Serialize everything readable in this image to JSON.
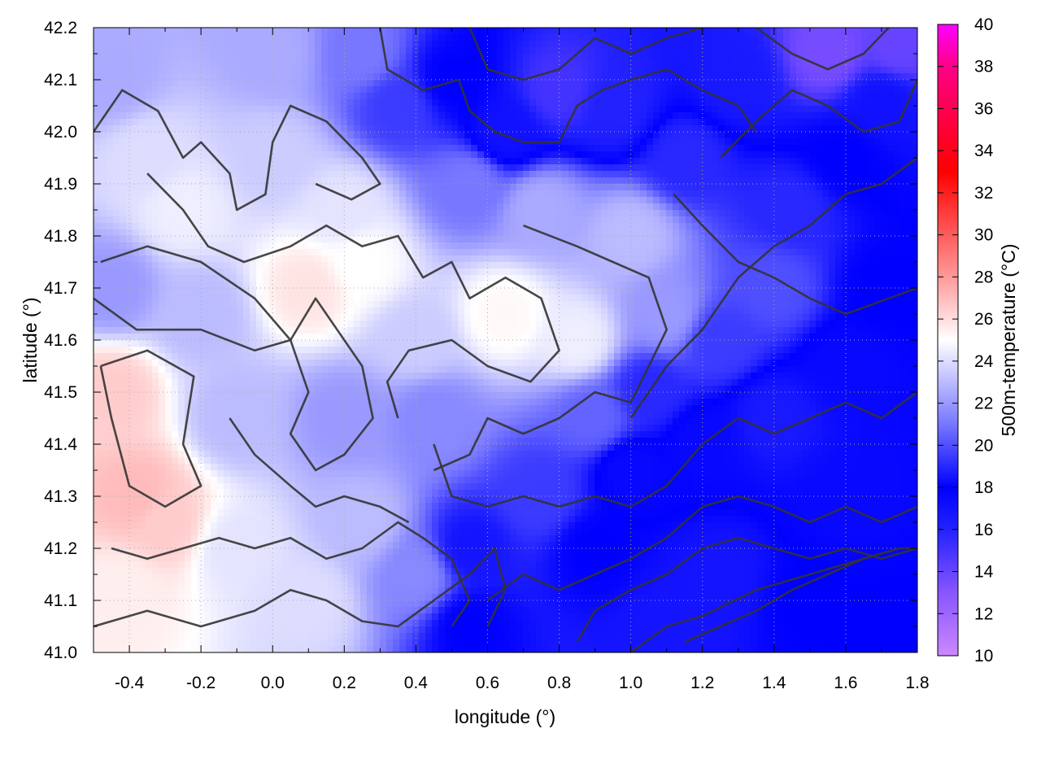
{
  "chart_data": {
    "type": "heatmap",
    "xlabel": "longitude (°)",
    "ylabel": "latitude (°)",
    "colorbar_label": "500m-temperature (°C)",
    "xlim": [
      -0.5,
      1.8
    ],
    "ylim": [
      41.0,
      42.2
    ],
    "color_range": [
      10,
      40
    ],
    "x_ticks": [
      {
        "value": -0.4,
        "label": "-0.4"
      },
      {
        "value": -0.2,
        "label": "-0.2"
      },
      {
        "value": 0.0,
        "label": "0.0"
      },
      {
        "value": 0.2,
        "label": "0.2"
      },
      {
        "value": 0.4,
        "label": "0.4"
      },
      {
        "value": 0.6,
        "label": "0.6"
      },
      {
        "value": 0.8,
        "label": "0.8"
      },
      {
        "value": 1.0,
        "label": "1.0"
      },
      {
        "value": 1.2,
        "label": "1.2"
      },
      {
        "value": 1.4,
        "label": "1.4"
      },
      {
        "value": 1.6,
        "label": "1.6"
      },
      {
        "value": 1.8,
        "label": "1.8"
      }
    ],
    "y_ticks": [
      {
        "value": 41.0,
        "label": "41.0"
      },
      {
        "value": 41.1,
        "label": "41.1"
      },
      {
        "value": 41.2,
        "label": "41.2"
      },
      {
        "value": 41.3,
        "label": "41.3"
      },
      {
        "value": 41.4,
        "label": "41.4"
      },
      {
        "value": 41.5,
        "label": "41.5"
      },
      {
        "value": 41.6,
        "label": "41.6"
      },
      {
        "value": 41.7,
        "label": "41.7"
      },
      {
        "value": 41.8,
        "label": "41.8"
      },
      {
        "value": 41.9,
        "label": "41.9"
      },
      {
        "value": 42.0,
        "label": "42.0"
      },
      {
        "value": 42.1,
        "label": "42.1"
      },
      {
        "value": 42.2,
        "label": "42.2"
      }
    ],
    "colorbar_ticks": [
      {
        "value": 10,
        "label": "10"
      },
      {
        "value": 12,
        "label": "12"
      },
      {
        "value": 14,
        "label": "14"
      },
      {
        "value": 16,
        "label": "16"
      },
      {
        "value": 18,
        "label": "18"
      },
      {
        "value": 20,
        "label": "20"
      },
      {
        "value": 22,
        "label": "22"
      },
      {
        "value": 24,
        "label": "24"
      },
      {
        "value": 26,
        "label": "26"
      },
      {
        "value": 28,
        "label": "28"
      },
      {
        "value": 30,
        "label": "30"
      },
      {
        "value": 32,
        "label": "32"
      },
      {
        "value": 34,
        "label": "34"
      },
      {
        "value": 36,
        "label": "36"
      },
      {
        "value": 38,
        "label": "38"
      },
      {
        "value": 40,
        "label": "40"
      }
    ],
    "colormap": [
      {
        "value": 10,
        "color": "#cc88ff"
      },
      {
        "value": 13,
        "color": "#8855ff"
      },
      {
        "value": 16,
        "color": "#2222ff"
      },
      {
        "value": 18,
        "color": "#0000ff"
      },
      {
        "value": 21,
        "color": "#7777ff"
      },
      {
        "value": 25,
        "color": "#ffffff"
      },
      {
        "value": 28,
        "color": "#ff9999"
      },
      {
        "value": 33,
        "color": "#ff0000"
      },
      {
        "value": 38,
        "color": "#ff0088"
      },
      {
        "value": 40,
        "color": "#ff00ff"
      }
    ],
    "grid": true,
    "field_samples": [
      {
        "lon": -0.45,
        "lat": 41.5,
        "temp": 26.5
      },
      {
        "lon": -0.38,
        "lat": 41.3,
        "temp": 27.0
      },
      {
        "lon": -0.3,
        "lat": 41.25,
        "temp": 26.5
      },
      {
        "lon": -0.42,
        "lat": 41.12,
        "temp": 25.5
      },
      {
        "lon": -0.2,
        "lat": 41.65,
        "temp": 23.0
      },
      {
        "lon": -0.35,
        "lat": 41.95,
        "temp": 24.0
      },
      {
        "lon": -0.25,
        "lat": 41.85,
        "temp": 24.5
      },
      {
        "lon": 0.1,
        "lat": 41.7,
        "temp": 25.8
      },
      {
        "lon": 0.25,
        "lat": 41.75,
        "temp": 25.0
      },
      {
        "lon": 0.65,
        "lat": 41.65,
        "temp": 25.2
      },
      {
        "lon": 0.85,
        "lat": 41.6,
        "temp": 24.5
      },
      {
        "lon": 0.0,
        "lat": 41.95,
        "temp": 23.5
      },
      {
        "lon": 0.2,
        "lat": 41.85,
        "temp": 24.2
      },
      {
        "lon": -0.1,
        "lat": 41.2,
        "temp": 24.2
      },
      {
        "lon": 0.1,
        "lat": 41.1,
        "temp": 24.0
      },
      {
        "lon": 0.25,
        "lat": 41.25,
        "temp": 23.0
      },
      {
        "lon": 0.2,
        "lat": 41.45,
        "temp": 22.0
      },
      {
        "lon": -0.1,
        "lat": 41.45,
        "temp": 23.0
      },
      {
        "lon": 0.45,
        "lat": 41.45,
        "temp": 21.5
      },
      {
        "lon": 0.4,
        "lat": 41.15,
        "temp": 21.5
      },
      {
        "lon": 0.55,
        "lat": 41.2,
        "temp": 18.5
      },
      {
        "lon": 0.55,
        "lat": 41.05,
        "temp": 18.0
      },
      {
        "lon": 0.75,
        "lat": 41.3,
        "temp": 19.5
      },
      {
        "lon": 0.9,
        "lat": 41.2,
        "temp": 18.0
      },
      {
        "lon": 1.0,
        "lat": 41.35,
        "temp": 17.5
      },
      {
        "lon": 1.05,
        "lat": 41.5,
        "temp": 19.0
      },
      {
        "lon": 0.9,
        "lat": 41.45,
        "temp": 20.5
      },
      {
        "lon": 1.2,
        "lat": 41.4,
        "temp": 17.5
      },
      {
        "lon": 1.4,
        "lat": 41.45,
        "temp": 16.5
      },
      {
        "lon": 1.6,
        "lat": 41.55,
        "temp": 17.5
      },
      {
        "lon": 1.7,
        "lat": 41.7,
        "temp": 18.0
      },
      {
        "lon": 1.6,
        "lat": 41.3,
        "temp": 17.5
      },
      {
        "lon": 1.5,
        "lat": 41.1,
        "temp": 18.0
      },
      {
        "lon": 1.25,
        "lat": 41.15,
        "temp": 18.5
      },
      {
        "lon": 1.1,
        "lat": 41.05,
        "temp": 18.5
      },
      {
        "lon": 1.25,
        "lat": 41.6,
        "temp": 19.5
      },
      {
        "lon": 1.4,
        "lat": 41.7,
        "temp": 20.0
      },
      {
        "lon": 1.45,
        "lat": 41.85,
        "temp": 19.0
      },
      {
        "lon": 1.6,
        "lat": 41.95,
        "temp": 18.0
      },
      {
        "lon": 1.7,
        "lat": 42.05,
        "temp": 17.0
      },
      {
        "lon": 1.55,
        "lat": 42.15,
        "temp": 13.5
      },
      {
        "lon": 1.75,
        "lat": 42.17,
        "temp": 14.0
      },
      {
        "lon": 1.3,
        "lat": 42.1,
        "temp": 16.5
      },
      {
        "lon": 1.15,
        "lat": 41.95,
        "temp": 19.0
      },
      {
        "lon": 0.95,
        "lat": 42.05,
        "temp": 16.0
      },
      {
        "lon": 0.8,
        "lat": 42.08,
        "temp": 15.0
      },
      {
        "lon": 0.65,
        "lat": 42.0,
        "temp": 17.0
      },
      {
        "lon": 0.5,
        "lat": 42.1,
        "temp": 18.0
      },
      {
        "lon": 0.35,
        "lat": 42.05,
        "temp": 19.5
      },
      {
        "lon": 0.55,
        "lat": 41.9,
        "temp": 21.0
      },
      {
        "lon": 0.75,
        "lat": 41.85,
        "temp": 22.5
      },
      {
        "lon": 1.0,
        "lat": 41.8,
        "temp": 23.0
      },
      {
        "lon": 1.1,
        "lat": 41.65,
        "temp": 22.0
      },
      {
        "lon": 0.4,
        "lat": 41.6,
        "temp": 23.5
      },
      {
        "lon": 0.0,
        "lat": 42.15,
        "temp": 22.5
      },
      {
        "lon": 0.25,
        "lat": 42.15,
        "temp": 21.0
      },
      {
        "lon": -0.45,
        "lat": 41.7,
        "temp": 22.0
      },
      {
        "lon": -0.45,
        "lat": 42.1,
        "temp": 22.5
      },
      {
        "lon": 1.75,
        "lat": 41.05,
        "temp": 18.0
      }
    ],
    "contours": [
      [
        [
          -0.48,
          41.55
        ],
        [
          -0.35,
          41.58
        ],
        [
          -0.22,
          41.53
        ],
        [
          -0.25,
          41.4
        ],
        [
          -0.2,
          41.32
        ],
        [
          -0.3,
          41.28
        ],
        [
          -0.4,
          41.32
        ],
        [
          -0.45,
          41.45
        ],
        [
          -0.48,
          41.55
        ]
      ],
      [
        [
          -0.5,
          41.68
        ],
        [
          -0.38,
          41.62
        ],
        [
          -0.2,
          41.62
        ],
        [
          -0.05,
          41.58
        ],
        [
          0.05,
          41.6
        ],
        [
          -0.05,
          41.68
        ],
        [
          -0.2,
          41.75
        ],
        [
          -0.35,
          41.78
        ],
        [
          -0.48,
          41.75
        ]
      ],
      [
        [
          -0.5,
          42.0
        ],
        [
          -0.42,
          42.08
        ],
        [
          -0.32,
          42.04
        ],
        [
          -0.25,
          41.95
        ],
        [
          -0.2,
          41.98
        ],
        [
          -0.12,
          41.92
        ],
        [
          -0.1,
          41.85
        ],
        [
          -0.02,
          41.88
        ],
        [
          0.0,
          41.98
        ],
        [
          0.05,
          42.05
        ],
        [
          0.15,
          42.02
        ],
        [
          0.25,
          41.95
        ],
        [
          0.3,
          41.9
        ],
        [
          0.22,
          41.87
        ],
        [
          0.12,
          41.9
        ]
      ],
      [
        [
          -0.35,
          41.92
        ],
        [
          -0.25,
          41.85
        ],
        [
          -0.18,
          41.78
        ],
        [
          -0.08,
          41.75
        ],
        [
          0.05,
          41.78
        ],
        [
          0.15,
          41.82
        ],
        [
          0.25,
          41.78
        ],
        [
          0.35,
          41.8
        ],
        [
          0.42,
          41.72
        ],
        [
          0.5,
          41.75
        ],
        [
          0.55,
          41.68
        ],
        [
          0.65,
          41.72
        ],
        [
          0.75,
          41.68
        ],
        [
          0.8,
          41.58
        ],
        [
          0.72,
          41.52
        ],
        [
          0.6,
          41.55
        ],
        [
          0.5,
          41.6
        ],
        [
          0.38,
          41.58
        ],
        [
          0.32,
          41.52
        ],
        [
          0.35,
          41.45
        ]
      ],
      [
        [
          0.7,
          41.82
        ],
        [
          0.85,
          41.78
        ],
        [
          0.95,
          41.75
        ],
        [
          1.05,
          41.72
        ],
        [
          1.1,
          41.62
        ],
        [
          1.05,
          41.55
        ],
        [
          1.0,
          41.48
        ],
        [
          0.9,
          41.5
        ],
        [
          0.8,
          41.45
        ],
        [
          0.7,
          41.42
        ],
        [
          0.6,
          41.45
        ],
        [
          0.55,
          41.38
        ],
        [
          0.45,
          41.35
        ]
      ],
      [
        [
          -0.45,
          41.2
        ],
        [
          -0.35,
          41.18
        ],
        [
          -0.25,
          41.2
        ],
        [
          -0.15,
          41.22
        ],
        [
          -0.05,
          41.2
        ],
        [
          0.05,
          41.22
        ],
        [
          0.15,
          41.18
        ],
        [
          0.25,
          41.2
        ],
        [
          0.35,
          41.25
        ],
        [
          0.42,
          41.22
        ],
        [
          0.5,
          41.18
        ],
        [
          0.55,
          41.1
        ],
        [
          0.5,
          41.05
        ]
      ],
      [
        [
          -0.5,
          41.05
        ],
        [
          -0.35,
          41.08
        ],
        [
          -0.2,
          41.05
        ],
        [
          -0.05,
          41.08
        ],
        [
          0.05,
          41.12
        ],
        [
          0.15,
          41.1
        ],
        [
          0.25,
          41.06
        ],
        [
          0.35,
          41.05
        ],
        [
          0.45,
          41.1
        ],
        [
          0.55,
          41.15
        ],
        [
          0.62,
          41.2
        ],
        [
          0.65,
          41.12
        ],
        [
          0.6,
          41.05
        ]
      ],
      [
        [
          0.45,
          41.4
        ],
        [
          0.5,
          41.3
        ],
        [
          0.6,
          41.28
        ],
        [
          0.7,
          41.3
        ],
        [
          0.8,
          41.28
        ],
        [
          0.9,
          41.3
        ],
        [
          1.0,
          41.28
        ],
        [
          1.1,
          41.32
        ],
        [
          1.2,
          41.4
        ],
        [
          1.3,
          41.45
        ],
        [
          1.4,
          41.42
        ],
        [
          1.5,
          41.45
        ],
        [
          1.6,
          41.48
        ],
        [
          1.7,
          41.45
        ],
        [
          1.8,
          41.5
        ]
      ],
      [
        [
          0.6,
          41.1
        ],
        [
          0.7,
          41.15
        ],
        [
          0.8,
          41.12
        ],
        [
          0.9,
          41.15
        ],
        [
          1.0,
          41.18
        ],
        [
          1.1,
          41.22
        ],
        [
          1.2,
          41.28
        ],
        [
          1.3,
          41.3
        ],
        [
          1.4,
          41.28
        ],
        [
          1.5,
          41.25
        ],
        [
          1.6,
          41.28
        ],
        [
          1.7,
          41.25
        ],
        [
          1.8,
          41.28
        ]
      ],
      [
        [
          0.85,
          41.02
        ],
        [
          0.9,
          41.08
        ],
        [
          1.0,
          41.12
        ],
        [
          1.1,
          41.15
        ],
        [
          1.2,
          41.2
        ],
        [
          1.3,
          41.22
        ],
        [
          1.4,
          41.2
        ],
        [
          1.5,
          41.18
        ],
        [
          1.6,
          41.2
        ],
        [
          1.7,
          41.18
        ],
        [
          1.8,
          41.2
        ]
      ],
      [
        [
          1.15,
          41.02
        ],
        [
          1.25,
          41.05
        ],
        [
          1.35,
          41.08
        ],
        [
          1.45,
          41.12
        ],
        [
          1.55,
          41.15
        ],
        [
          1.65,
          41.18
        ],
        [
          1.75,
          41.2
        ],
        [
          1.8,
          41.2
        ]
      ],
      [
        [
          1.0,
          41.0
        ],
        [
          1.1,
          41.05
        ],
        [
          1.2,
          41.07
        ],
        [
          1.35,
          41.12
        ],
        [
          1.5,
          41.15
        ],
        [
          1.65,
          41.18
        ],
        [
          1.75,
          41.2
        ]
      ],
      [
        [
          1.0,
          41.45
        ],
        [
          1.1,
          41.55
        ],
        [
          1.2,
          41.62
        ],
        [
          1.3,
          41.72
        ],
        [
          1.4,
          41.78
        ],
        [
          1.5,
          41.82
        ],
        [
          1.6,
          41.88
        ],
        [
          1.7,
          41.9
        ],
        [
          1.8,
          41.95
        ]
      ],
      [
        [
          0.3,
          42.2
        ],
        [
          0.32,
          42.12
        ],
        [
          0.42,
          42.08
        ],
        [
          0.52,
          42.1
        ],
        [
          0.55,
          42.04
        ],
        [
          0.62,
          42.0
        ],
        [
          0.7,
          41.98
        ],
        [
          0.8,
          41.98
        ],
        [
          0.85,
          42.05
        ],
        [
          0.92,
          42.08
        ],
        [
          1.0,
          42.1
        ],
        [
          1.1,
          42.12
        ],
        [
          1.2,
          42.08
        ],
        [
          1.3,
          42.05
        ],
        [
          1.35,
          42.0
        ]
      ],
      [
        [
          1.25,
          41.95
        ],
        [
          1.35,
          42.02
        ],
        [
          1.45,
          42.08
        ],
        [
          1.55,
          42.05
        ],
        [
          1.65,
          42.0
        ],
        [
          1.75,
          42.02
        ],
        [
          1.8,
          42.1
        ]
      ],
      [
        [
          0.55,
          42.2
        ],
        [
          0.6,
          42.12
        ],
        [
          0.7,
          42.1
        ],
        [
          0.8,
          42.12
        ],
        [
          0.9,
          42.18
        ],
        [
          1.0,
          42.15
        ],
        [
          1.1,
          42.18
        ],
        [
          1.2,
          42.2
        ]
      ],
      [
        [
          1.35,
          42.2
        ],
        [
          1.45,
          42.15
        ],
        [
          1.55,
          42.12
        ],
        [
          1.65,
          42.15
        ],
        [
          1.72,
          42.2
        ]
      ],
      [
        [
          1.12,
          41.88
        ],
        [
          1.2,
          41.82
        ],
        [
          1.3,
          41.75
        ],
        [
          1.4,
          41.72
        ],
        [
          1.5,
          41.68
        ],
        [
          1.6,
          41.65
        ],
        [
          1.72,
          41.68
        ],
        [
          1.8,
          41.7
        ]
      ],
      [
        [
          0.05,
          41.6
        ],
        [
          0.1,
          41.5
        ],
        [
          0.05,
          41.42
        ],
        [
          0.12,
          41.35
        ],
        [
          0.2,
          41.38
        ],
        [
          0.28,
          41.45
        ],
        [
          0.25,
          41.55
        ],
        [
          0.18,
          41.62
        ],
        [
          0.12,
          41.68
        ],
        [
          0.05,
          41.6
        ]
      ],
      [
        [
          -0.12,
          41.45
        ],
        [
          -0.05,
          41.38
        ],
        [
          0.05,
          41.32
        ],
        [
          0.12,
          41.28
        ],
        [
          0.2,
          41.3
        ],
        [
          0.3,
          41.28
        ],
        [
          0.38,
          41.25
        ]
      ]
    ]
  }
}
